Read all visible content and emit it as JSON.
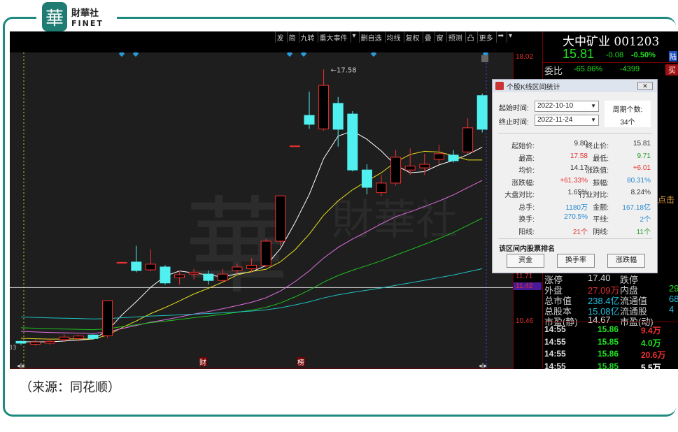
{
  "brand": {
    "seal": "華",
    "name": "財華社",
    "sub": "FINET"
  },
  "caption": "（来源：同花顺）",
  "toolbar": [
    "发",
    "简",
    "九转",
    "重大事件",
    "▾",
    "删自选",
    "均线",
    "复权",
    "叠",
    "窗",
    "预测",
    "凸",
    "更多",
    "➡",
    "▾"
  ],
  "axis": {
    "top": "18.02",
    "mid": "11.71",
    "current": "11.42",
    "low": "10.46",
    "left_cut": "83"
  },
  "chart": {
    "high_label": "17.58",
    "markers": [
      "财",
      "榜"
    ],
    "ma_colors": [
      "#ffffff",
      "#e8e020",
      "#e070e0",
      "#20c020",
      "#20c0c0"
    ],
    "candles": [
      [
        9.9,
        9.85,
        9.92,
        9.8
      ],
      [
        9.82,
        9.88,
        9.95,
        9.78
      ],
      [
        9.85,
        9.9,
        9.98,
        9.8
      ],
      [
        9.95,
        10.02,
        10.1,
        9.88
      ],
      [
        9.98,
        10.05,
        10.08,
        9.9
      ],
      [
        10.08,
        9.98,
        10.1,
        9.95
      ],
      [
        10.06,
        11.05,
        11.05,
        10.0
      ],
      [
        12.12,
        12.13,
        12.14,
        12.1
      ],
      [
        12.14,
        11.9,
        12.6,
        11.85
      ],
      [
        11.92,
        12.08,
        12.5,
        11.88
      ],
      [
        12.0,
        11.55,
        12.05,
        11.5
      ],
      [
        11.7,
        11.78,
        11.9,
        11.5
      ],
      [
        11.8,
        11.85,
        11.95,
        11.65
      ],
      [
        11.8,
        11.62,
        11.9,
        11.5
      ],
      [
        11.62,
        11.8,
        11.95,
        11.55
      ],
      [
        11.9,
        12.0,
        12.1,
        11.8
      ],
      [
        11.95,
        12.05,
        12.25,
        11.85
      ],
      [
        12.04,
        12.73,
        12.8,
        12.0
      ],
      [
        12.73,
        14.01,
        14.01,
        12.6
      ],
      [
        15.41,
        15.42,
        15.42,
        15.41
      ],
      [
        16.28,
        16.03,
        16.95,
        15.9
      ],
      [
        15.9,
        17.13,
        17.58,
        15.85
      ],
      [
        16.62,
        15.89,
        16.8,
        15.4
      ],
      [
        16.32,
        14.74,
        16.4,
        14.7
      ],
      [
        14.74,
        14.25,
        14.9,
        14.05
      ],
      [
        14.1,
        14.37,
        14.6,
        14.0
      ],
      [
        14.37,
        15.1,
        15.3,
        14.3
      ],
      [
        14.74,
        14.85,
        15.35,
        14.6
      ],
      [
        14.8,
        14.9,
        15.2,
        14.6
      ],
      [
        15.04,
        15.2,
        15.45,
        14.9
      ],
      [
        15.16,
        15.0,
        15.3,
        14.95
      ],
      [
        15.25,
        15.93,
        16.2,
        15.2
      ],
      [
        16.84,
        15.89,
        16.9,
        15.8
      ]
    ]
  },
  "quote": {
    "name": "大中矿业 001203",
    "price": "15.81",
    "change": "-0.08",
    "pct": "-0.50%",
    "tag": "陆",
    "weibi_label": "委比",
    "weibi": "-65.86%",
    "weicha": "-4399",
    "buy": "买",
    "click": "点击",
    "rows": [
      [
        "涨停",
        "17.40",
        "跌停",
        ""
      ],
      [
        "外盘",
        "27.09万",
        "内盘",
        "29"
      ],
      [
        "总市值",
        "238.4亿",
        "流通值",
        "68"
      ],
      [
        "总股本",
        "15.08亿",
        "流通股",
        "4"
      ],
      [
        "市盈(静)",
        "14.67",
        "市盈(动)",
        ""
      ]
    ],
    "trades": [
      [
        "14:55",
        "15.86",
        "9.4万",
        "red"
      ],
      [
        "14:55",
        "15.85",
        "4.0万",
        "green"
      ],
      [
        "14:55",
        "15.86",
        "20.6万",
        "red"
      ],
      [
        "14:55",
        "15.85",
        "5.5万",
        "white"
      ]
    ]
  },
  "dialog": {
    "title": "个股K线区间统计",
    "start_label": "起始时间:",
    "start": "2022-10-10",
    "end_label": "终止时间:",
    "end": "2022-11-24",
    "period_label": "周期个数:",
    "period": "34个",
    "stats": [
      [
        "起始价:",
        "9.80",
        "#333",
        "终止价:",
        "15.81",
        "#333"
      ],
      [
        "最高:",
        "17.58",
        "#e83030",
        "最低:",
        "9.71",
        "#2a9a2a"
      ],
      [
        "均价:",
        "14.17",
        "#333",
        "涨跌值:",
        "+6.01",
        "#e83030"
      ],
      [
        "涨跌幅:",
        "+61.33%",
        "#e83030",
        "振幅:",
        "80.31%",
        "#2a8ad0"
      ],
      [
        "大盘对比:",
        "1.65%",
        "#333",
        "行业对比:",
        "8.24%",
        "#333"
      ],
      [
        "总手:",
        "1180万",
        "#2a8ad0",
        "金额:",
        "167.18亿",
        "#2a8ad0"
      ],
      [
        "换手:",
        "270.5%",
        "#2a8ad0",
        "平线:",
        "2个",
        "#2a8ad0"
      ],
      [
        "阳线:",
        "21个",
        "#e83030",
        "阴线:",
        "11个",
        "#2a9a2a"
      ]
    ],
    "rank_label": "该区间内股票排名",
    "buttons": [
      "资金",
      "换手率",
      "涨跌幅"
    ]
  }
}
